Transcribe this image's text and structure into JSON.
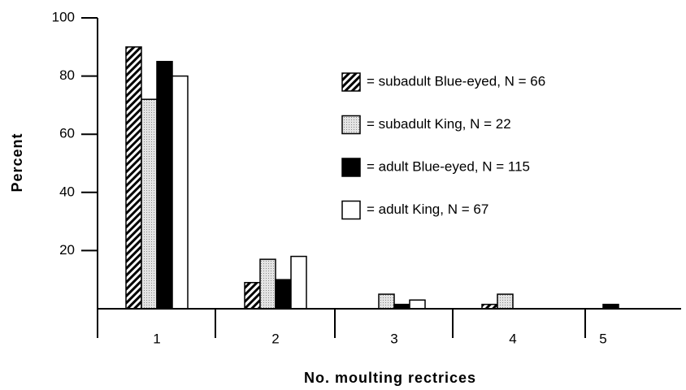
{
  "chart_data": {
    "type": "bar",
    "x_label": "No. moulting rectrices",
    "y_label": "Percent",
    "categories": [
      "1",
      "2",
      "3",
      "4",
      "5"
    ],
    "series": [
      {
        "name": "= subadult Blue-eyed, N = 66",
        "color": "#000000",
        "pattern": "hatch",
        "values": [
          90,
          9,
          0,
          1.5,
          0
        ]
      },
      {
        "name": "= subadult King, N = 22",
        "color": "#000000",
        "pattern": "dots",
        "values": [
          72,
          17,
          5,
          5,
          0
        ]
      },
      {
        "name": "= adult Blue-eyed, N = 115",
        "color": "#000000",
        "pattern": "solid",
        "values": [
          85,
          10,
          1.5,
          0,
          1.5
        ]
      },
      {
        "name": "= adult  King, N = 67",
        "color": "#000000",
        "pattern": "open",
        "values": [
          80,
          18,
          3,
          0,
          0
        ]
      }
    ],
    "ylim": [
      0,
      100
    ],
    "yticks": [
      20,
      40,
      60,
      80,
      100
    ]
  }
}
